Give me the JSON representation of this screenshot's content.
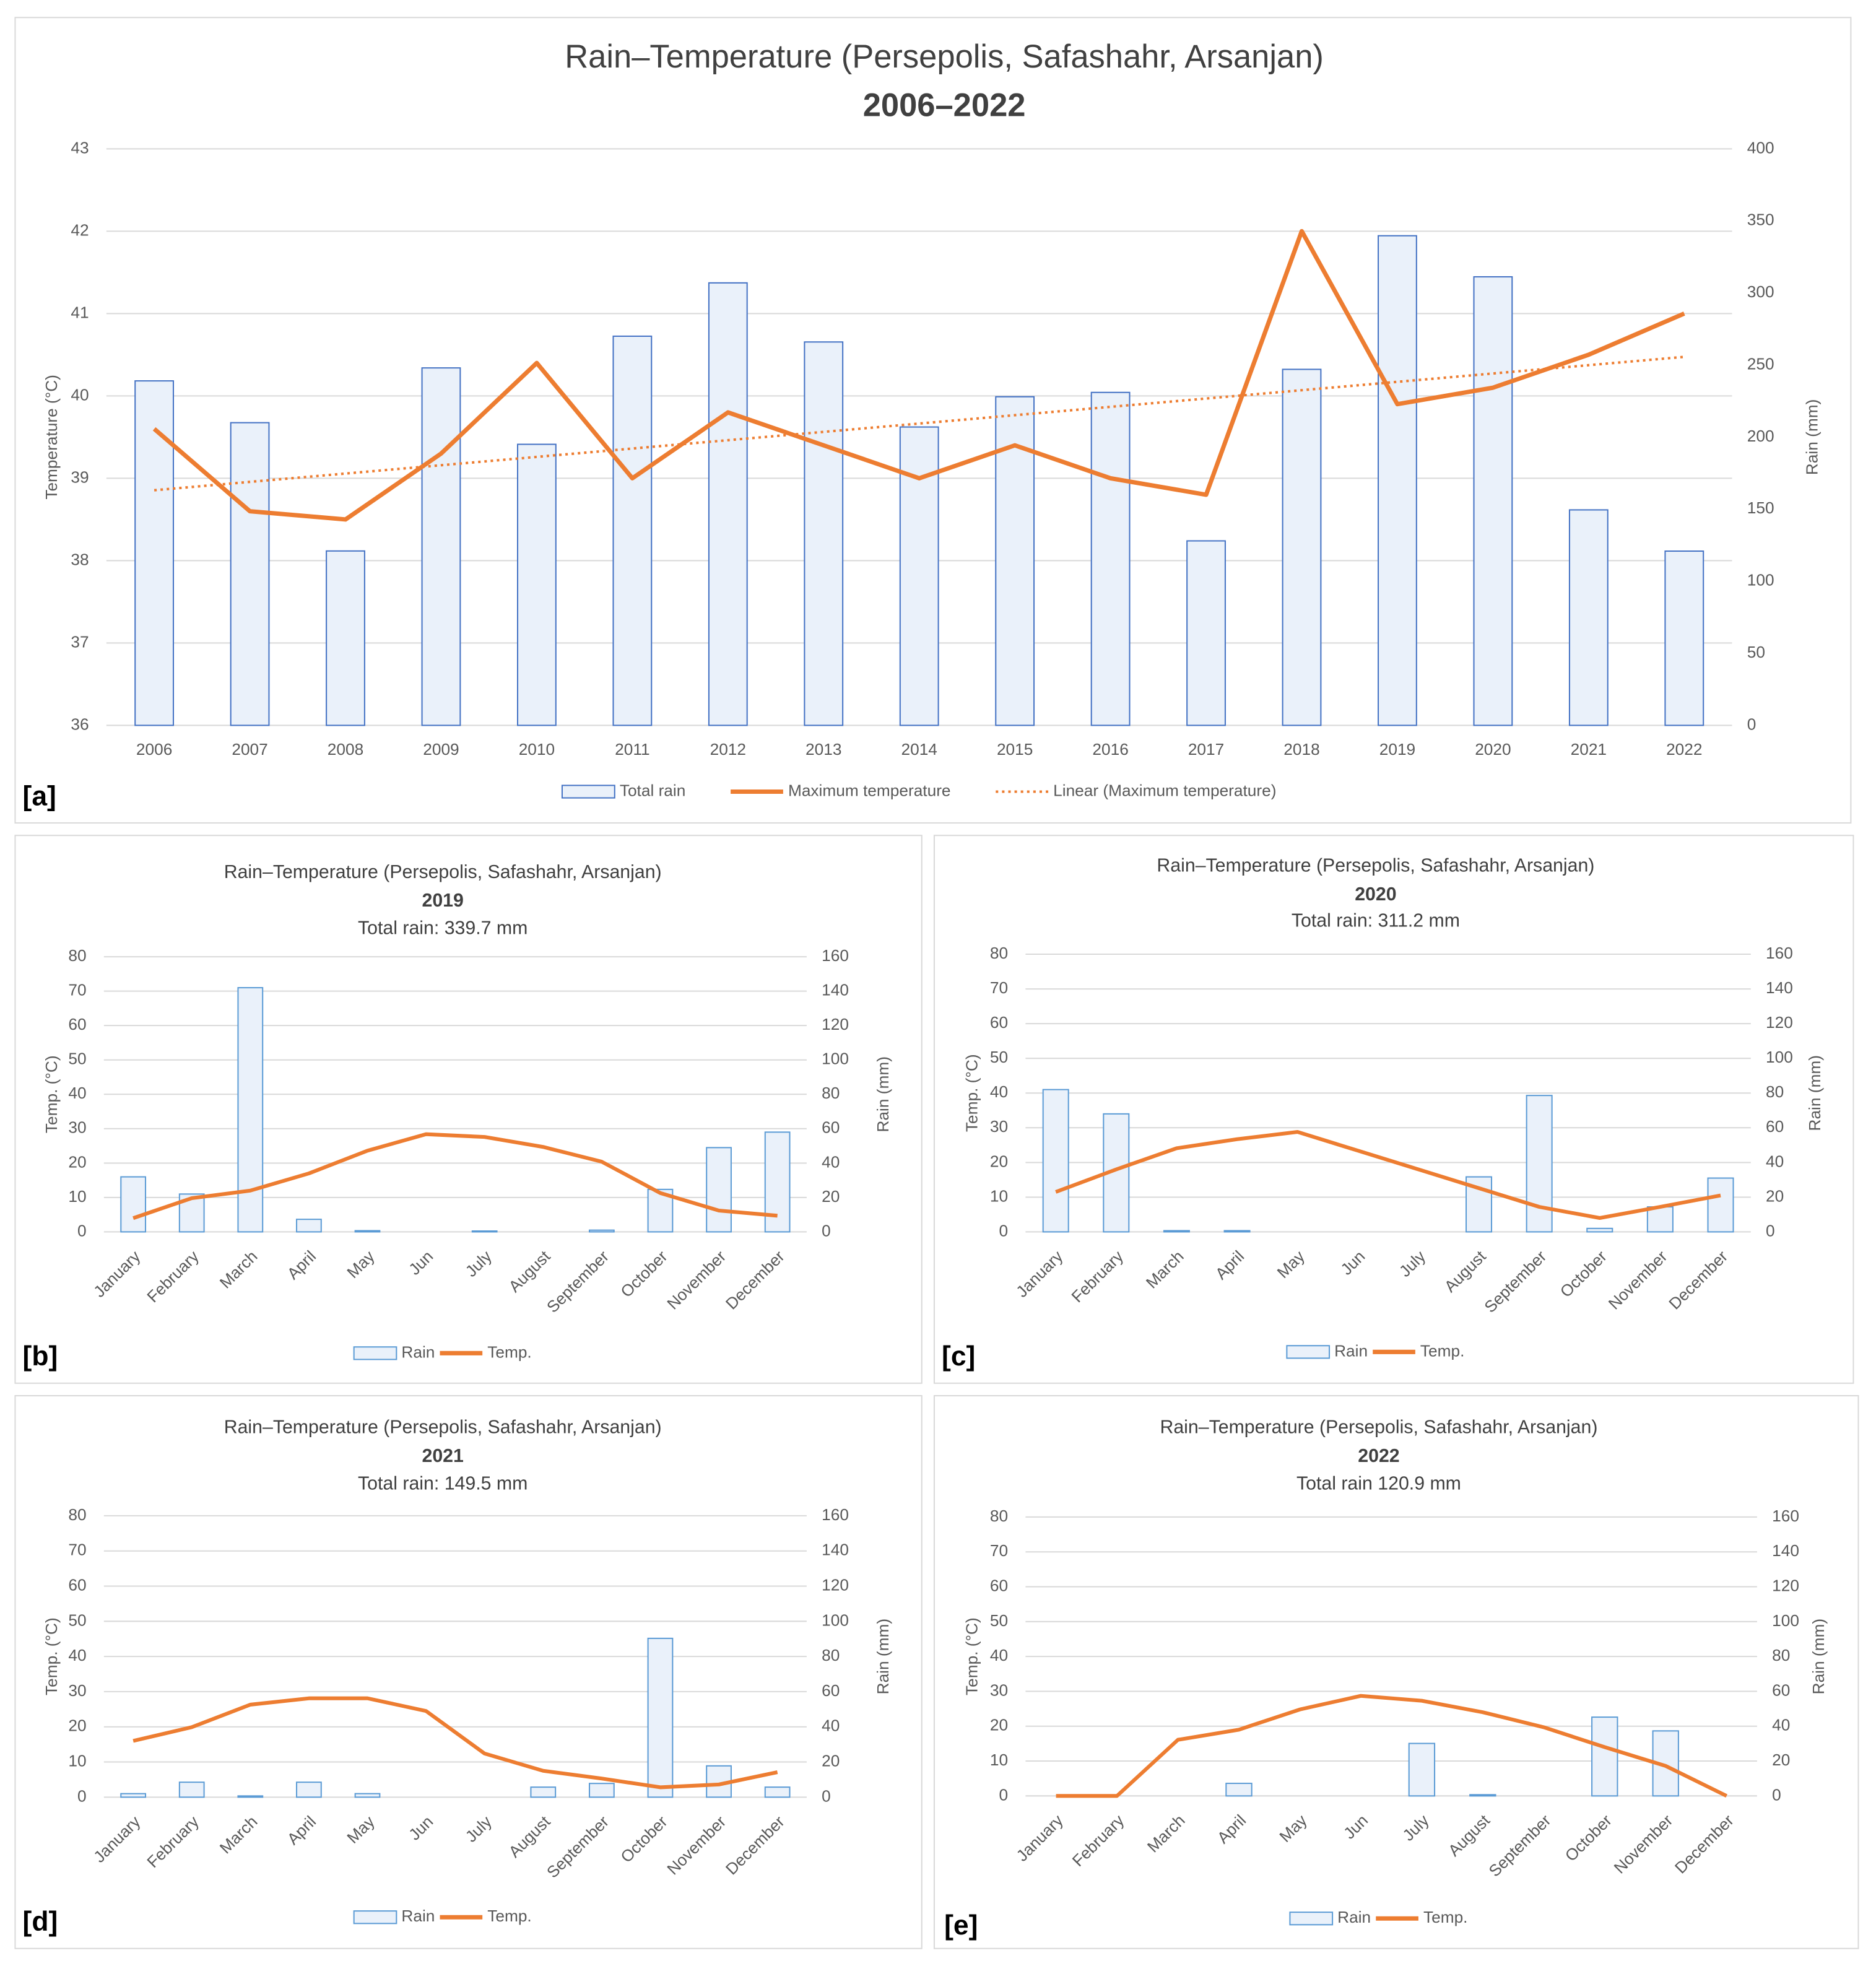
{
  "chart_data": [
    {
      "type": "combo",
      "panel": "[a]",
      "title": "Rain–Temperature (Persepolis, Safashahr, Arsanjan)",
      "subtitle": "2006–2022",
      "y_label": "Temperature (°C)",
      "y2_label": "Rain (mm)",
      "categories": [
        "2006",
        "2007",
        "2008",
        "2009",
        "2010",
        "2011",
        "2012",
        "2013",
        "2014",
        "2015",
        "2016",
        "2017",
        "2018",
        "2019",
        "2020",
        "2021",
        "2022"
      ],
      "series": [
        {
          "name": "Total rain",
          "type": "bar",
          "axis": "y2",
          "color": "#4472c4",
          "values": [
            239,
            210,
            121,
            248,
            195,
            270,
            307,
            266,
            207,
            228,
            231,
            128,
            247,
            339.7,
            311.2,
            149.5,
            120.9
          ]
        },
        {
          "name": "Maximum temperature",
          "type": "line",
          "color": "#ed7d31",
          "values": [
            39.6,
            38.6,
            38.5,
            39.3,
            40.4,
            39.0,
            39.8,
            39.4,
            39.0,
            39.4,
            39.0,
            38.8,
            42.0,
            39.9,
            40.1,
            40.5,
            41.0
          ],
          "trendline": "Linear (Maximum temperature)"
        }
      ],
      "ylim": [
        36,
        43
      ],
      "yticks": [
        36,
        37,
        38,
        39,
        40,
        41,
        42,
        43
      ],
      "y2lim": [
        0,
        400
      ],
      "y2ticks": [
        0,
        50,
        100,
        150,
        200,
        250,
        300,
        350,
        400
      ],
      "grid": true
    },
    {
      "type": "combo",
      "panel": "[b]",
      "title": "Rain–Temperature (Persepolis, Safashahr, Arsanjan)",
      "subtitle": "2019",
      "note": "Total rain: 339.7 mm",
      "y_label": "Temp. (°C)",
      "y2_label": "Rain (mm)",
      "categories": [
        "January",
        "February",
        "March",
        "April",
        "May",
        "Jun",
        "July",
        "August",
        "September",
        "October",
        "November",
        "December"
      ],
      "series": [
        {
          "name": "Rain",
          "type": "bar",
          "axis": "y2",
          "color": "#5b9bd5",
          "values": [
            32,
            22,
            142,
            7.3,
            0.7,
            0,
            0.5,
            0,
            1,
            24.7,
            49,
            58
          ]
        },
        {
          "name": "Temp.",
          "type": "line",
          "color": "#ed7d31",
          "values": [
            4.0,
            9.8,
            12.0,
            17.0,
            23.6,
            28.4,
            27.6,
            24.7,
            20.4,
            11.3,
            6.2,
            4.7
          ]
        }
      ],
      "ylim": [
        0,
        80
      ],
      "yticks": [
        0,
        10,
        20,
        30,
        40,
        50,
        60,
        70,
        80
      ],
      "y2lim": [
        0,
        160
      ],
      "y2ticks": [
        0,
        20,
        40,
        60,
        80,
        100,
        120,
        140,
        160
      ],
      "grid": true
    },
    {
      "type": "combo",
      "panel": "[c]",
      "title": "Rain–Temperature (Persepolis, Safashahr, Arsanjan)",
      "subtitle": "2020",
      "note": "Total rain: 311.2 mm",
      "y_label": "Temp. (°C)",
      "y2_label": "Rain (mm)",
      "categories": [
        "January",
        "February",
        "March",
        "April",
        "May",
        "Jun",
        "July",
        "August",
        "September",
        "October",
        "November",
        "December"
      ],
      "series": [
        {
          "name": "Rain",
          "type": "bar",
          "axis": "y2",
          "color": "#5b9bd5",
          "values": [
            82,
            68,
            0.7,
            0.7,
            0,
            0,
            0,
            31.7,
            78.6,
            2,
            14.4,
            31
          ]
        },
        {
          "name": "Temp.",
          "type": "line",
          "color": "#ed7d31",
          "values": [
            11.5,
            18.0,
            24.1,
            26.7,
            28.8,
            23.4,
            18.0,
            12.6,
            7.2,
            4.0,
            7.2,
            10.5
          ]
        }
      ],
      "ylim": [
        0,
        80
      ],
      "yticks": [
        0,
        10,
        20,
        30,
        40,
        50,
        60,
        70,
        80
      ],
      "y2lim": [
        0,
        160
      ],
      "y2ticks": [
        0,
        20,
        40,
        60,
        80,
        100,
        120,
        140,
        160
      ],
      "grid": true
    },
    {
      "type": "combo",
      "panel": "[d]",
      "title": "Rain–Temperature (Persepolis, Safashahr, Arsanjan)",
      "subtitle": "2021",
      "note": "Total rain: 149.5 mm",
      "y_label": "Temp. (°C)",
      "y2_label": "Rain (mm)",
      "categories": [
        "January",
        "February",
        "March",
        "April",
        "May",
        "Jun",
        "July",
        "August",
        "September",
        "October",
        "November",
        "December"
      ],
      "series": [
        {
          "name": "Rain",
          "type": "bar",
          "axis": "y2",
          "color": "#5b9bd5",
          "values": [
            2,
            8.5,
            0.7,
            8.5,
            2,
            0,
            0,
            5.7,
            7.8,
            90.3,
            17.8,
            5.7
          ]
        },
        {
          "name": "Temp.",
          "type": "line",
          "color": "#ed7d31",
          "values": [
            16.0,
            19.9,
            26.3,
            28.1,
            28.1,
            24.5,
            12.4,
            7.5,
            5.3,
            2.8,
            3.6,
            7.1
          ]
        }
      ],
      "ylim": [
        0,
        80
      ],
      "yticks": [
        0,
        10,
        20,
        30,
        40,
        50,
        60,
        70,
        80
      ],
      "y2lim": [
        0,
        160
      ],
      "y2ticks": [
        0,
        20,
        40,
        60,
        80,
        100,
        120,
        140,
        160
      ],
      "grid": true
    },
    {
      "type": "combo",
      "panel": "[e]",
      "title": "Rain–Temperature (Persepolis, Safashahr, Arsanjan)",
      "subtitle": "2022",
      "note": "Total rain 120.9 mm",
      "y_label": "Temp. (°C)",
      "y2_label": "Rain (mm)",
      "categories": [
        "January",
        "February",
        "March",
        "April",
        "May",
        "Jun",
        "July",
        "August",
        "September",
        "October",
        "November",
        "December"
      ],
      "series": [
        {
          "name": "Rain",
          "type": "bar",
          "axis": "y2",
          "color": "#5b9bd5",
          "values": [
            0,
            0,
            0,
            7.2,
            0,
            0,
            30.1,
            0.7,
            0,
            45.2,
            37.3,
            0
          ]
        },
        {
          "name": "Temp.",
          "type": "line",
          "color": "#ed7d31",
          "values": [
            0,
            0,
            16.1,
            19.0,
            24.8,
            28.7,
            27.3,
            24.0,
            19.7,
            14.0,
            8.6,
            0
          ]
        }
      ],
      "ylim": [
        0,
        80
      ],
      "yticks": [
        0,
        10,
        20,
        30,
        40,
        50,
        60,
        70,
        80
      ],
      "y2lim": [
        0,
        160
      ],
      "y2ticks": [
        0,
        20,
        40,
        60,
        80,
        100,
        120,
        140,
        160
      ],
      "grid": true
    }
  ]
}
